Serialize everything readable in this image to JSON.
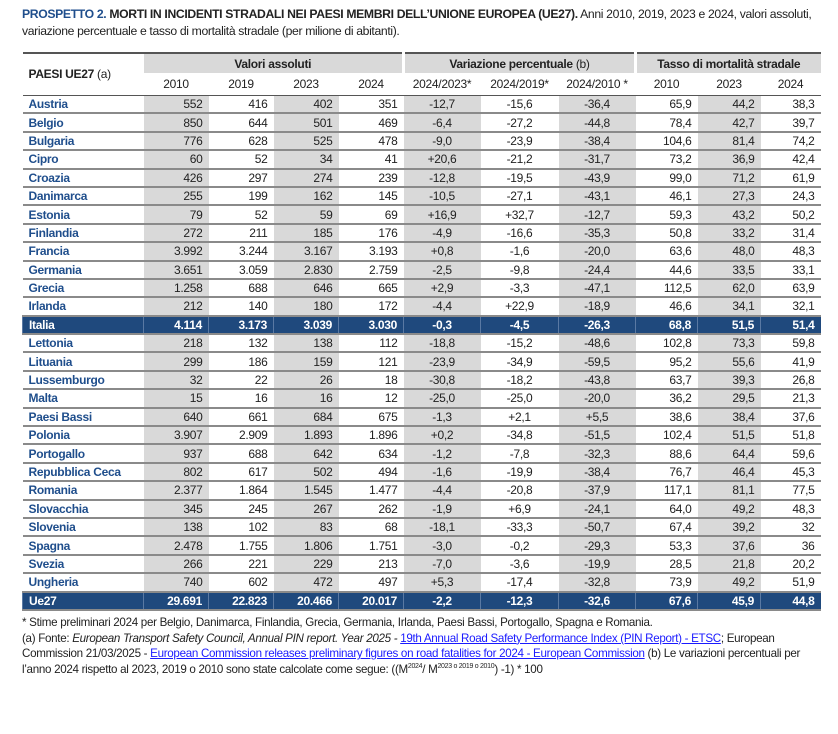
{
  "title": {
    "lead": "PROSPETTO 2.",
    "bold": "MORTI IN INCIDENTI STRADALI NEI PAESI MEMBRI DELL’UNIONE EUROPEA (UE27).",
    "rest": "Anni 2010, 2019, 2023 e 2024, valori assoluti, variazione percentuale e tasso di mortalità stradale (per milione di abitanti)."
  },
  "header": {
    "country_label": "PAESI UE27",
    "country_note": "(a)",
    "groups": {
      "abs": "Valori assoluti",
      "var": "Variazione percentuale",
      "var_note": "(b)",
      "rate": "Tasso di mortalità stradale"
    },
    "columns": [
      "2010",
      "2019",
      "2023",
      "2024",
      "2024/2023*",
      "2024/2019*",
      "2024/2010 *",
      "2010",
      "2023",
      "2024"
    ]
  },
  "rows": [
    [
      "Austria",
      "552",
      "416",
      "402",
      "351",
      "-12,7",
      "-15,6",
      "-36,4",
      "65,9",
      "44,2",
      "38,3"
    ],
    [
      "Belgio",
      "850",
      "644",
      "501",
      "469",
      "-6,4",
      "-27,2",
      "-44,8",
      "78,4",
      "42,7",
      "39,7"
    ],
    [
      "Bulgaria",
      "776",
      "628",
      "525",
      "478",
      "-9,0",
      "-23,9",
      "-38,4",
      "104,6",
      "81,4",
      "74,2"
    ],
    [
      "Cipro",
      "60",
      "52",
      "34",
      "41",
      "+20,6",
      "-21,2",
      "-31,7",
      "73,2",
      "36,9",
      "42,4"
    ],
    [
      "Croazia",
      "426",
      "297",
      "274",
      "239",
      "-12,8",
      "-19,5",
      "-43,9",
      "99,0",
      "71,2",
      "61,9"
    ],
    [
      "Danimarca",
      "255",
      "199",
      "162",
      "145",
      "-10,5",
      "-27,1",
      "-43,1",
      "46,1",
      "27,3",
      "24,3"
    ],
    [
      "Estonia",
      "79",
      "52",
      "59",
      "69",
      "+16,9",
      "+32,7",
      "-12,7",
      "59,3",
      "43,2",
      "50,2"
    ],
    [
      "Finlandia",
      "272",
      "211",
      "185",
      "176",
      "-4,9",
      "-16,6",
      "-35,3",
      "50,8",
      "33,2",
      "31,4"
    ],
    [
      "Francia",
      "3.992",
      "3.244",
      "3.167",
      "3.193",
      "+0,8",
      "-1,6",
      "-20,0",
      "63,6",
      "48,0",
      "48,3"
    ],
    [
      "Germania",
      "3.651",
      "3.059",
      "2.830",
      "2.759",
      "-2,5",
      "-9,8",
      "-24,4",
      "44,6",
      "33,5",
      "33,1"
    ],
    [
      "Grecia",
      "1.258",
      "688",
      "646",
      "665",
      "+2,9",
      "-3,3",
      "-47,1",
      "112,5",
      "62,0",
      "63,9"
    ],
    [
      "Irlanda",
      "212",
      "140",
      "180",
      "172",
      "-4,4",
      "+22,9",
      "-18,9",
      "46,6",
      "34,1",
      "32,1"
    ],
    [
      "Italia",
      "4.114",
      "3.173",
      "3.039",
      "3.030",
      "-0,3",
      "-4,5",
      "-26,3",
      "68,8",
      "51,5",
      "51,4"
    ],
    [
      "Lettonia",
      "218",
      "132",
      "138",
      "112",
      "-18,8",
      "-15,2",
      "-48,6",
      "102,8",
      "73,3",
      "59,8"
    ],
    [
      "Lituania",
      "299",
      "186",
      "159",
      "121",
      "-23,9",
      "-34,9",
      "-59,5",
      "95,2",
      "55,6",
      "41,9"
    ],
    [
      "Lussemburgo",
      "32",
      "22",
      "26",
      "18",
      "-30,8",
      "-18,2",
      "-43,8",
      "63,7",
      "39,3",
      "26,8"
    ],
    [
      "Malta",
      "15",
      "16",
      "16",
      "12",
      "-25,0",
      "-25,0",
      "-20,0",
      "36,2",
      "29,5",
      "21,3"
    ],
    [
      "Paesi Bassi",
      "640",
      "661",
      "684",
      "675",
      "-1,3",
      "+2,1",
      "+5,5",
      "38,6",
      "38,4",
      "37,6"
    ],
    [
      "Polonia",
      "3.907",
      "2.909",
      "1.893",
      "1.896",
      "+0,2",
      "-34,8",
      "-51,5",
      "102,4",
      "51,5",
      "51,8"
    ],
    [
      "Portogallo",
      "937",
      "688",
      "642",
      "634",
      "-1,2",
      "-7,8",
      "-32,3",
      "88,6",
      "64,4",
      "59,6"
    ],
    [
      "Repubblica Ceca",
      "802",
      "617",
      "502",
      "494",
      "-1,6",
      "-19,9",
      "-38,4",
      "76,7",
      "46,4",
      "45,3"
    ],
    [
      "Romania",
      "2.377",
      "1.864",
      "1.545",
      "1.477",
      "-4,4",
      "-20,8",
      "-37,9",
      "117,1",
      "81,1",
      "77,5"
    ],
    [
      "Slovacchia",
      "345",
      "245",
      "267",
      "262",
      "-1,9",
      "+6,9",
      "-24,1",
      "64,0",
      "49,2",
      "48,3"
    ],
    [
      "Slovenia",
      "138",
      "102",
      "83",
      "68",
      "-18,1",
      "-33,3",
      "-50,7",
      "67,4",
      "39,2",
      "32"
    ],
    [
      "Spagna",
      "2.478",
      "1.755",
      "1.806",
      "1.751",
      "-3,0",
      "-0,2",
      "-29,3",
      "53,3",
      "37,6",
      "36"
    ],
    [
      "Svezia",
      "266",
      "221",
      "229",
      "213",
      "-7,0",
      "-3,6",
      "-19,9",
      "28,5",
      "21,8",
      "20,2"
    ],
    [
      "Ungheria",
      "740",
      "602",
      "472",
      "497",
      "+5,3",
      "-17,4",
      "-32,8",
      "73,9",
      "49,2",
      "51,9"
    ],
    [
      "Ue27",
      "29.691",
      "22.823",
      "20.466",
      "20.017",
      "-2,2",
      "-12,3",
      "-32,6",
      "67,6",
      "45,9",
      "44,8"
    ]
  ],
  "highlighted_rows": [
    "Italia",
    "Ue27"
  ],
  "notes": {
    "star": "* Stime preliminari 2024 per Belgio, Danimarca, Finlandia, Grecia, Germania, Irlanda, Paesi Bassi, Portogallo, Spagna e Romania.",
    "a_prefix": "(a) Fonte: ",
    "a_italic": "European Transport Safety Council, Annual PIN report. Year 2025 - ",
    "link1": "19th Annual Road Safety Performance Index (PIN Report) - ETSC",
    "a_mid": "; European Commission 21/03/2025 - ",
    "link2": "European Commission releases preliminary figures on road fatalities for 2024 - European Commission",
    "b_text": " (b) Le variazioni percentuali per l’anno 2024 rispetto al 2023, 2019 o 2010 sono state calcolate come segue: ((M",
    "sup1": "2024",
    "mid": "/ M",
    "sup2": "2023 o 2019 o 2010",
    "end": ") -1) * 100"
  }
}
